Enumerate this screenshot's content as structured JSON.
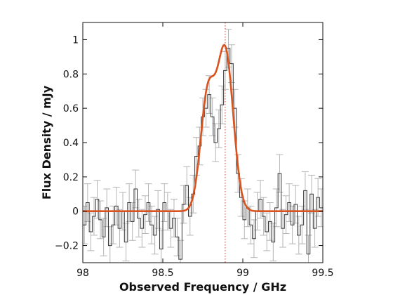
{
  "chart_data": {
    "type": "line",
    "title": "",
    "xlabel": "Observed Frequency / GHz",
    "ylabel": "Flux Density / mJy",
    "xlim": [
      98.0,
      99.5
    ],
    "ylim": [
      -0.3,
      1.1
    ],
    "xticks": [
      98,
      98.5,
      99,
      99.5
    ],
    "xtick_labels": [
      "98",
      "98.5",
      "99",
      "99.5"
    ],
    "yticks": [
      -0.2,
      0,
      0.2,
      0.4,
      0.6,
      0.8,
      1
    ],
    "ytick_labels": [
      "−0.2",
      "0",
      "0.2",
      "0.4",
      "0.6",
      "0.8",
      "1"
    ],
    "grid": false,
    "reference_line_x": 98.89,
    "series": [
      {
        "kind": "histogram-step",
        "color": "#333333",
        "errorbar_color": "#b5b5b5",
        "x": [
          98.0,
          98.02,
          98.04,
          98.06,
          98.08,
          98.1,
          98.12,
          98.14,
          98.16,
          98.18,
          98.2,
          98.22,
          98.24,
          98.26,
          98.28,
          98.3,
          98.32,
          98.34,
          98.36,
          98.38,
          98.4,
          98.42,
          98.44,
          98.46,
          98.48,
          98.5,
          98.52,
          98.54,
          98.56,
          98.58,
          98.6,
          98.62,
          98.64,
          98.66,
          98.68,
          98.7,
          98.72,
          98.74,
          98.76,
          98.78,
          98.8,
          98.82,
          98.84,
          98.86,
          98.88,
          98.9,
          98.92,
          98.94,
          98.96,
          98.98,
          99.0,
          99.02,
          99.04,
          99.06,
          99.08,
          99.1,
          99.12,
          99.14,
          99.16,
          99.18,
          99.2,
          99.22,
          99.24,
          99.26,
          99.28,
          99.3,
          99.32,
          99.34,
          99.36,
          99.38,
          99.4,
          99.42,
          99.44,
          99.46,
          99.48
        ],
        "y": [
          -0.08,
          0.05,
          -0.12,
          -0.03,
          0.07,
          -0.05,
          -0.15,
          0.02,
          -0.2,
          -0.08,
          0.03,
          -0.1,
          0.0,
          -0.18,
          0.05,
          -0.06,
          0.13,
          -0.04,
          -0.1,
          -0.02,
          0.05,
          -0.08,
          -0.14,
          0.01,
          -0.22,
          0.05,
          0.0,
          -0.1,
          -0.04,
          -0.15,
          -0.28,
          0.04,
          0.15,
          -0.03,
          0.1,
          0.32,
          0.38,
          0.55,
          0.6,
          0.68,
          0.55,
          0.4,
          0.48,
          0.62,
          0.82,
          0.95,
          0.86,
          0.6,
          0.22,
          0.08,
          -0.05,
          0.02,
          -0.08,
          -0.16,
          0.0,
          0.07,
          -0.03,
          -0.12,
          -0.06,
          -0.18,
          0.02,
          0.22,
          -0.1,
          -0.02,
          0.05,
          -0.08,
          0.04,
          -0.14,
          -0.08,
          0.12,
          -0.25,
          0.1,
          -0.1,
          0.08,
          0.02
        ],
        "yerr": 0.11
      },
      {
        "kind": "fit",
        "color": "#d9531e",
        "model": "double-gaussian",
        "components": [
          {
            "amplitude": 0.66,
            "center": 98.78,
            "sigma": 0.045
          },
          {
            "amplitude": 0.93,
            "center": 98.89,
            "sigma": 0.05
          }
        ]
      }
    ]
  }
}
